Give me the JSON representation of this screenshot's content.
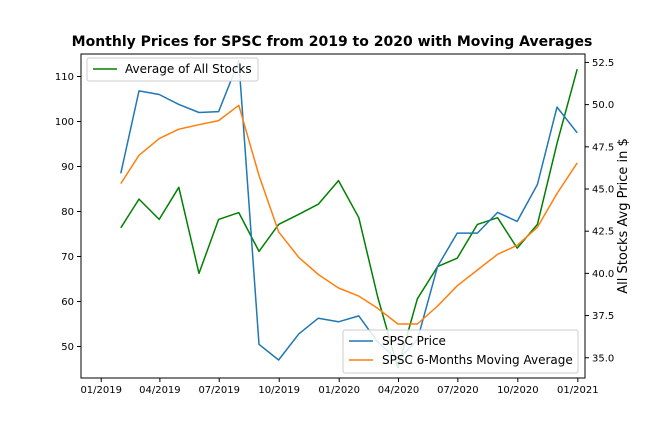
{
  "chart_data": {
    "type": "line",
    "title": "Monthly Prices for SPSC from 2019 to 2020 with Moving Averages",
    "xlabel": "",
    "ylabel": "",
    "y2label": "All Stocks Avg Price in $",
    "x_ticks": [
      "01/2019",
      "04/2019",
      "07/2019",
      "10/2019",
      "01/2020",
      "04/2020",
      "07/2020",
      "10/2020",
      "01/2021"
    ],
    "xlim": [
      "2018-12-01",
      "2021-01-12"
    ],
    "ylim": [
      43,
      115
    ],
    "y_ticks": [
      50,
      60,
      70,
      80,
      90,
      100,
      110
    ],
    "y2lim": [
      33.8,
      53.0
    ],
    "y2_ticks": [
      35.0,
      37.5,
      40.0,
      42.5,
      45.0,
      47.5,
      50.0,
      52.5
    ],
    "grid": false,
    "legend_left_placement": "top-left",
    "legend_right_placement": "lower-right",
    "colors": {
      "spsc_price": "#1f77b4",
      "moving_average": "#ff7f0e",
      "all_stocks": "#008000"
    },
    "x": [
      "2019-01-31",
      "2019-02-28",
      "2019-03-31",
      "2019-04-30",
      "2019-05-31",
      "2019-06-30",
      "2019-07-31",
      "2019-08-31",
      "2019-09-30",
      "2019-10-31",
      "2019-11-30",
      "2019-12-31",
      "2020-01-31",
      "2020-02-29",
      "2020-03-31",
      "2020-04-30",
      "2020-05-31",
      "2020-06-30",
      "2020-07-31",
      "2020-08-31",
      "2020-09-30",
      "2020-10-31",
      "2020-11-30",
      "2020-12-31"
    ],
    "series": [
      {
        "name": "SPSC Price",
        "axis": "left",
        "values": [
          88.5,
          106.8,
          106.0,
          103.8,
          102.0,
          102.2,
          113.5,
          50.5,
          47.0,
          52.8,
          56.3,
          55.5,
          56.8,
          51.0,
          47.0,
          51.5,
          67.8,
          75.2,
          75.2,
          79.8,
          77.8,
          86.0,
          103.2,
          97.5
        ]
      },
      {
        "name": "SPSC 6-Months Moving Average",
        "axis": "left",
        "values": [
          86.2,
          92.5,
          96.2,
          98.3,
          99.3,
          100.2,
          103.6,
          88.0,
          75.5,
          69.8,
          66.0,
          63.0,
          61.2,
          58.5,
          55.0,
          55.0,
          59.0,
          63.5,
          67.0,
          70.5,
          72.5,
          76.5,
          84.0,
          90.8
        ]
      },
      {
        "name": "Average of All Stocks",
        "axis": "right",
        "values": [
          42.7,
          44.4,
          43.2,
          45.1,
          40.0,
          43.2,
          43.6,
          41.3,
          42.9,
          43.5,
          44.1,
          45.5,
          43.3,
          38.6,
          34.4,
          38.5,
          40.4,
          40.9,
          42.9,
          43.3,
          41.5,
          42.9,
          47.7,
          52.1
        ]
      }
    ]
  }
}
